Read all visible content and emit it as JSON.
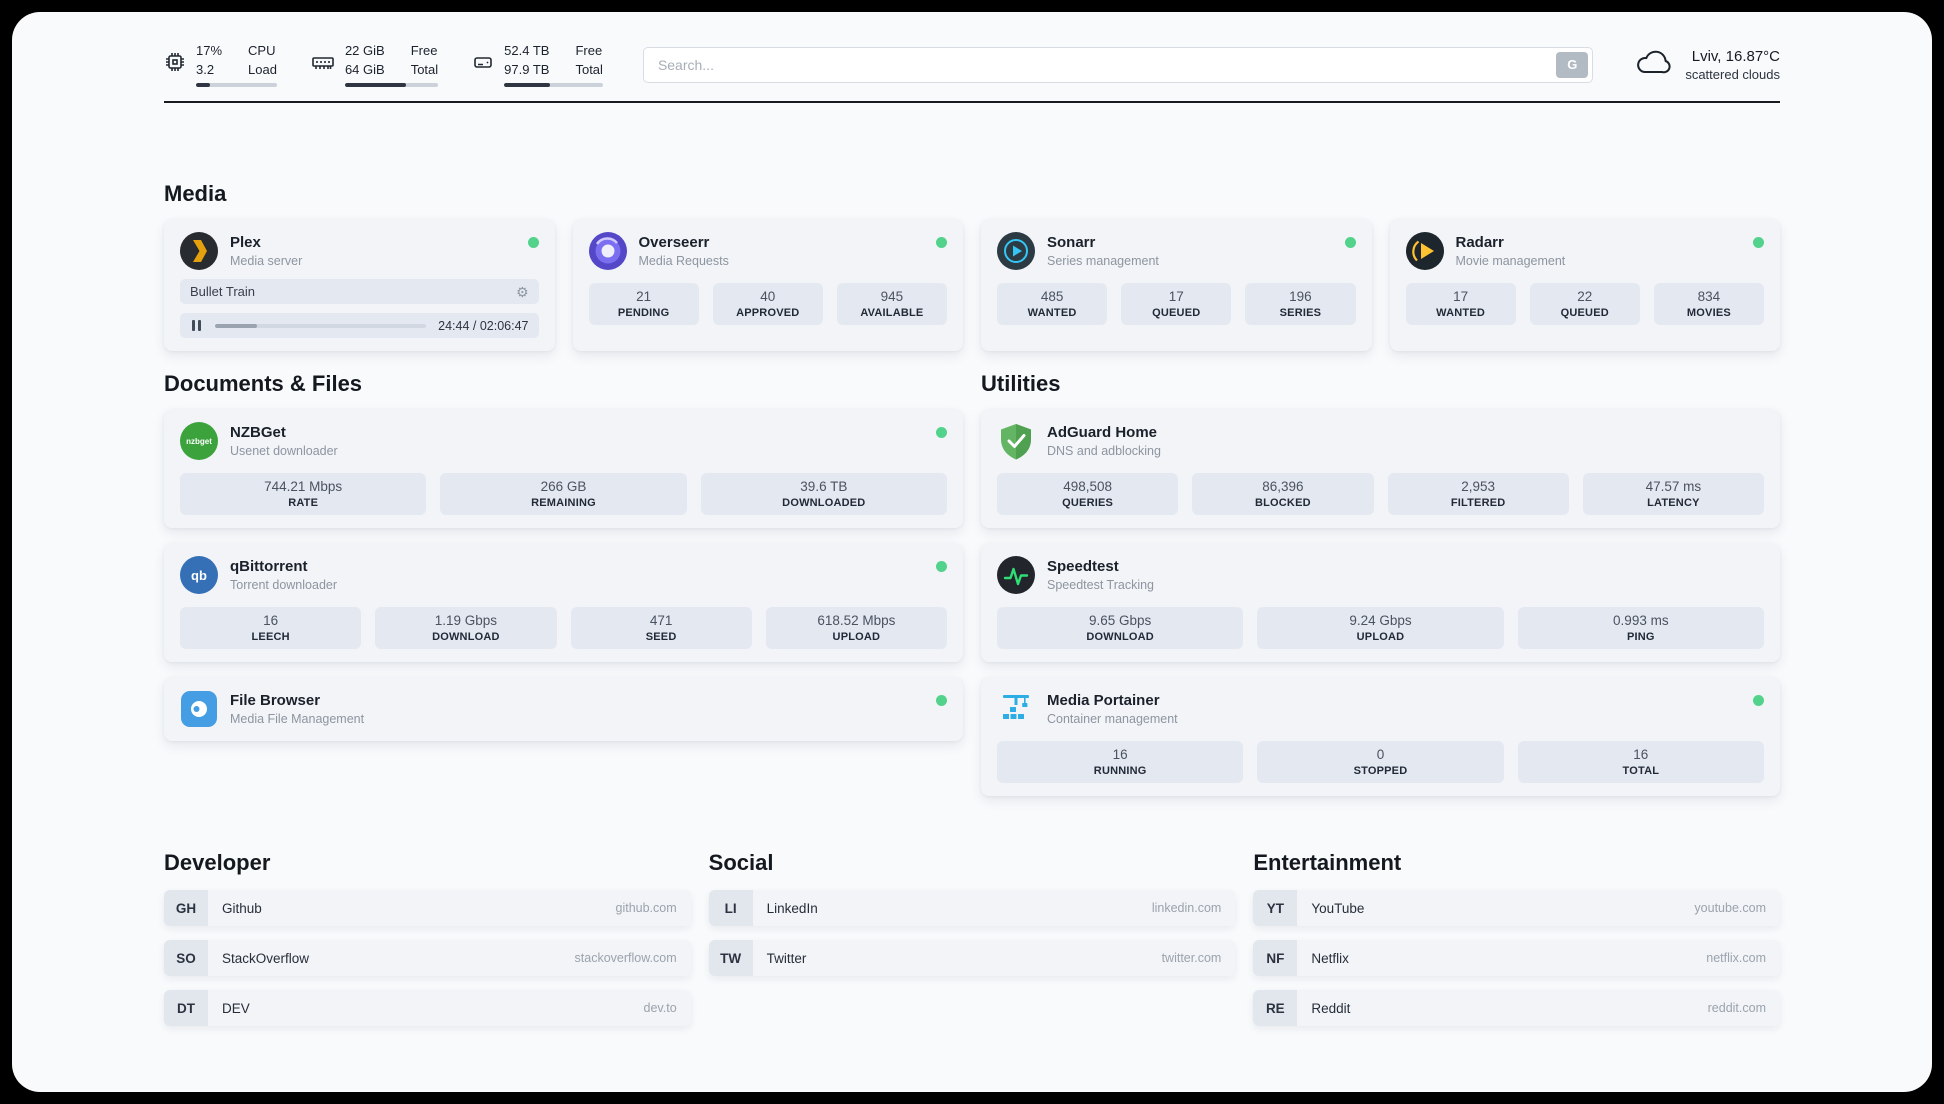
{
  "colors": {
    "status_online": "#53d28c"
  },
  "header": {
    "cpu": {
      "value_top": "17%",
      "value_bottom": "3.2",
      "label_top": "CPU",
      "label_bottom": "Load",
      "fill": 17
    },
    "ram": {
      "value_top": "22 GiB",
      "value_bottom": "64 GiB",
      "label_top": "Free",
      "label_bottom": "Total",
      "fill": 66
    },
    "disk": {
      "value_top": "52.4 TB",
      "value_bottom": "97.9 TB",
      "label_top": "Free",
      "label_bottom": "Total",
      "fill": 46
    },
    "search": {
      "placeholder": "Search...",
      "button_label": "G"
    },
    "weather": {
      "location": "Lviv, 16.87°C",
      "condition": "scattered clouds"
    }
  },
  "sections": {
    "media": "Media",
    "documents": "Documents & Files",
    "utilities": "Utilities",
    "developer": "Developer",
    "social": "Social",
    "entertainment": "Entertainment"
  },
  "apps": {
    "plex": {
      "name": "Plex",
      "subtitle": "Media server",
      "now_playing": "Bullet Train",
      "time": "24:44 / 02:06:47",
      "progress": 20
    },
    "overseerr": {
      "name": "Overseerr",
      "subtitle": "Media Requests",
      "stats": [
        {
          "value": "21",
          "label": "PENDING"
        },
        {
          "value": "40",
          "label": "APPROVED"
        },
        {
          "value": "945",
          "label": "AVAILABLE"
        }
      ]
    },
    "sonarr": {
      "name": "Sonarr",
      "subtitle": "Series management",
      "stats": [
        {
          "value": "485",
          "label": "WANTED"
        },
        {
          "value": "17",
          "label": "QUEUED"
        },
        {
          "value": "196",
          "label": "SERIES"
        }
      ]
    },
    "radarr": {
      "name": "Radarr",
      "subtitle": "Movie management",
      "stats": [
        {
          "value": "17",
          "label": "WANTED"
        },
        {
          "value": "22",
          "label": "QUEUED"
        },
        {
          "value": "834",
          "label": "MOVIES"
        }
      ]
    },
    "nzbget": {
      "name": "NZBGet",
      "subtitle": "Usenet downloader",
      "stats": [
        {
          "value": "744.21 Mbps",
          "label": "RATE"
        },
        {
          "value": "266 GB",
          "label": "REMAINING"
        },
        {
          "value": "39.6 TB",
          "label": "DOWNLOADED"
        }
      ]
    },
    "qbittorrent": {
      "name": "qBittorrent",
      "subtitle": "Torrent downloader",
      "stats": [
        {
          "value": "16",
          "label": "LEECH"
        },
        {
          "value": "1.19 Gbps",
          "label": "DOWNLOAD"
        },
        {
          "value": "471",
          "label": "SEED"
        },
        {
          "value": "618.52 Mbps",
          "label": "UPLOAD"
        }
      ]
    },
    "filebrowser": {
      "name": "File Browser",
      "subtitle": "Media File Management"
    },
    "adguard": {
      "name": "AdGuard Home",
      "subtitle": "DNS and adblocking",
      "stats": [
        {
          "value": "498,508",
          "label": "QUERIES"
        },
        {
          "value": "86,396",
          "label": "BLOCKED"
        },
        {
          "value": "2,953",
          "label": "FILTERED"
        },
        {
          "value": "47.57 ms",
          "label": "LATENCY"
        }
      ]
    },
    "speedtest": {
      "name": "Speedtest",
      "subtitle": "Speedtest Tracking",
      "stats": [
        {
          "value": "9.65 Gbps",
          "label": "DOWNLOAD"
        },
        {
          "value": "9.24 Gbps",
          "label": "UPLOAD"
        },
        {
          "value": "0.993 ms",
          "label": "PING"
        }
      ]
    },
    "portainer": {
      "name": "Media Portainer",
      "subtitle": "Container management",
      "stats": [
        {
          "value": "16",
          "label": "RUNNING"
        },
        {
          "value": "0",
          "label": "STOPPED"
        },
        {
          "value": "16",
          "label": "TOTAL"
        }
      ]
    }
  },
  "bookmarks": {
    "developer": [
      {
        "abbr": "GH",
        "name": "Github",
        "url": "github.com"
      },
      {
        "abbr": "SO",
        "name": "StackOverflow",
        "url": "stackoverflow.com"
      },
      {
        "abbr": "DT",
        "name": "DEV",
        "url": "dev.to"
      }
    ],
    "social": [
      {
        "abbr": "LI",
        "name": "LinkedIn",
        "url": "linkedin.com"
      },
      {
        "abbr": "TW",
        "name": "Twitter",
        "url": "twitter.com"
      }
    ],
    "entertainment": [
      {
        "abbr": "YT",
        "name": "YouTube",
        "url": "youtube.com"
      },
      {
        "abbr": "NF",
        "name": "Netflix",
        "url": "netflix.com"
      },
      {
        "abbr": "RE",
        "name": "Reddit",
        "url": "reddit.com"
      }
    ]
  }
}
